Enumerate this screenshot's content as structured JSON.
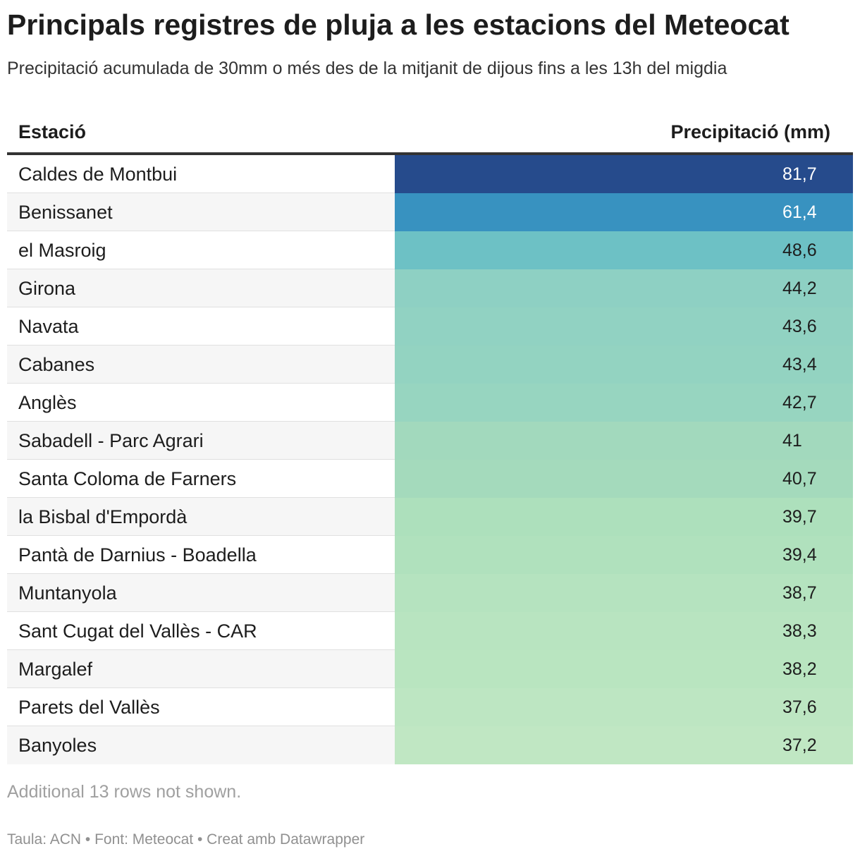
{
  "header": {
    "title": "Principals registres de pluja a les estacions del Meteocat",
    "subtitle": "Precipitació acumulada de 30mm o més des de la mitjanit de dijous fins a les 13h del migdia"
  },
  "chart_data": {
    "type": "table",
    "title": "Principals registres de pluja a les estacions del Meteocat",
    "subtitle": "Precipitació acumulada de 30mm o més des de la mitjanit de dijous fins a les 13h del migdia",
    "columns": [
      "Estació",
      "Precipitació (mm)"
    ],
    "rows": [
      {
        "station": "Caldes de Montbui",
        "value": "81,7",
        "color": "#264b8c",
        "text_color": "#ffffff"
      },
      {
        "station": "Benissanet",
        "value": "61,4",
        "color": "#3892c0",
        "text_color": "#ffffff"
      },
      {
        "station": "el Masroig",
        "value": "48,6",
        "color": "#6dc1c5",
        "text_color": "#1d1d1d"
      },
      {
        "station": "Girona",
        "value": "44,2",
        "color": "#8ed0c3",
        "text_color": "#1d1d1d"
      },
      {
        "station": "Navata",
        "value": "43,6",
        "color": "#91d2c2",
        "text_color": "#1d1d1d"
      },
      {
        "station": "Cabanes",
        "value": "43,4",
        "color": "#93d3c1",
        "text_color": "#1d1d1d"
      },
      {
        "station": "Anglès",
        "value": "42,7",
        "color": "#97d5c0",
        "text_color": "#1d1d1d"
      },
      {
        "station": "Sabadell - Parc Agrari",
        "value": "41",
        "color": "#a2d9bd",
        "text_color": "#1d1d1d"
      },
      {
        "station": "Santa Coloma de Farners",
        "value": "40,7",
        "color": "#a4dabc",
        "text_color": "#1d1d1d"
      },
      {
        "station": "la Bisbal d'Empordà",
        "value": "39,7",
        "color": "#ade0bc",
        "text_color": "#1d1d1d"
      },
      {
        "station": "Pantà de Darnius - Boadella",
        "value": "39,4",
        "color": "#b0e1bd",
        "text_color": "#1d1d1d"
      },
      {
        "station": "Muntanyola",
        "value": "38,7",
        "color": "#b5e3bf",
        "text_color": "#1d1d1d"
      },
      {
        "station": "Sant Cugat del Vallès - CAR",
        "value": "38,3",
        "color": "#b8e4c0",
        "text_color": "#1d1d1d"
      },
      {
        "station": "Margalef",
        "value": "38,2",
        "color": "#b9e5c0",
        "text_color": "#1d1d1d"
      },
      {
        "station": "Parets del Vallès",
        "value": "37,6",
        "color": "#bde6c2",
        "text_color": "#1d1d1d"
      },
      {
        "station": "Banyoles",
        "value": "37,2",
        "color": "#c0e7c3",
        "text_color": "#1d1d1d"
      }
    ],
    "note": "Additional 13 rows not shown."
  },
  "footer": {
    "credit": "Taula: ACN • Font: Meteocat • Creat amb Datawrapper"
  }
}
